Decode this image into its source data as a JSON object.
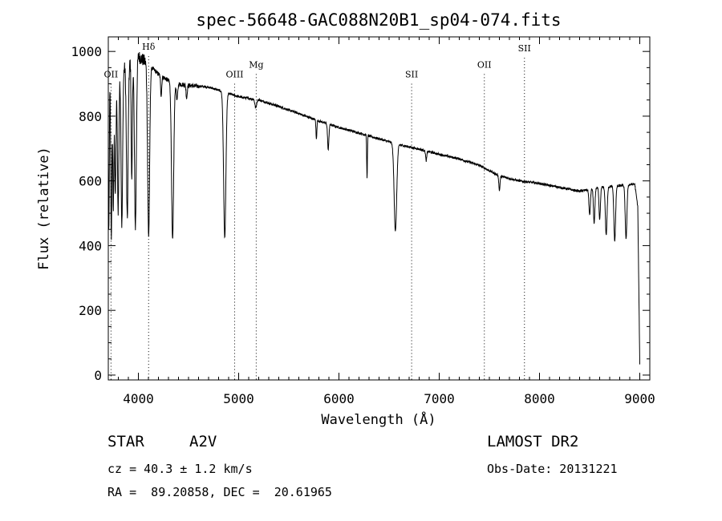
{
  "chart_data": {
    "type": "line",
    "title": "spec-56648-GAC088N20B1_sp04-074.fits",
    "xlabel": "Wavelength (Å)",
    "ylabel": "Flux (relative)",
    "xlim": [
      3700,
      9100
    ],
    "ylim": [
      -15,
      1045
    ],
    "x_ticks": [
      4000,
      5000,
      6000,
      7000,
      8000,
      9000
    ],
    "y_ticks": [
      0,
      200,
      400,
      600,
      800,
      1000
    ],
    "grid": false,
    "continuum": [
      [
        3700,
        900
      ],
      [
        3800,
        930
      ],
      [
        3900,
        965
      ],
      [
        4000,
        985
      ],
      [
        4100,
        960
      ],
      [
        4200,
        930
      ],
      [
        4300,
        910
      ],
      [
        4400,
        900
      ],
      [
        4500,
        895
      ],
      [
        4700,
        890
      ],
      [
        4900,
        870
      ],
      [
        5000,
        860
      ],
      [
        5200,
        850
      ],
      [
        5400,
        830
      ],
      [
        5600,
        808
      ],
      [
        5800,
        785
      ],
      [
        6000,
        765
      ],
      [
        6200,
        748
      ],
      [
        6400,
        730
      ],
      [
        6600,
        712
      ],
      [
        6800,
        698
      ],
      [
        7000,
        682
      ],
      [
        7200,
        668
      ],
      [
        7400,
        648
      ],
      [
        7600,
        615
      ],
      [
        7800,
        600
      ],
      [
        8000,
        592
      ],
      [
        8200,
        580
      ],
      [
        8400,
        568
      ],
      [
        8600,
        580
      ],
      [
        8800,
        585
      ],
      [
        8950,
        590
      ],
      [
        8980,
        520
      ],
      [
        9000,
        30
      ]
    ],
    "absorption_lines": [
      {
        "x": 3705,
        "depth": 470,
        "width": 6
      },
      {
        "x": 3730,
        "depth": 480,
        "width": 8
      },
      {
        "x": 3750,
        "depth": 400,
        "width": 8
      },
      {
        "x": 3770,
        "depth": 360,
        "width": 9
      },
      {
        "x": 3798,
        "depth": 420,
        "width": 10
      },
      {
        "x": 3835,
        "depth": 480,
        "width": 11
      },
      {
        "x": 3889,
        "depth": 480,
        "width": 12
      },
      {
        "x": 3934,
        "depth": 380,
        "width": 8
      },
      {
        "x": 3970,
        "depth": 520,
        "width": 13
      },
      {
        "x": 4102,
        "depth": 530,
        "width": 14
      },
      {
        "x": 4227,
        "depth": 60,
        "width": 8
      },
      {
        "x": 4341,
        "depth": 490,
        "width": 15
      },
      {
        "x": 4385,
        "depth": 50,
        "width": 10
      },
      {
        "x": 4481,
        "depth": 40,
        "width": 8
      },
      {
        "x": 4861,
        "depth": 450,
        "width": 16
      },
      {
        "x": 5170,
        "depth": 25,
        "width": 12
      },
      {
        "x": 5775,
        "depth": 60,
        "width": 6
      },
      {
        "x": 5893,
        "depth": 80,
        "width": 9
      },
      {
        "x": 6280,
        "depth": 130,
        "width": 5
      },
      {
        "x": 6563,
        "depth": 270,
        "width": 18
      },
      {
        "x": 6870,
        "depth": 30,
        "width": 8
      },
      {
        "x": 7600,
        "depth": 45,
        "width": 8
      },
      {
        "x": 8500,
        "depth": 80,
        "width": 10
      },
      {
        "x": 8545,
        "depth": 110,
        "width": 10
      },
      {
        "x": 8600,
        "depth": 100,
        "width": 10
      },
      {
        "x": 8665,
        "depth": 150,
        "width": 12
      },
      {
        "x": 8750,
        "depth": 170,
        "width": 12
      },
      {
        "x": 8863,
        "depth": 165,
        "width": 12
      }
    ],
    "reference_lines": [
      {
        "label": "OII",
        "x": 3727,
        "label_y": 920
      },
      {
        "label": "Hδ",
        "x": 4102,
        "label_y": 1005
      },
      {
        "label": "OIII",
        "x": 4960,
        "label_y": 920
      },
      {
        "label": "Mg",
        "x": 5175,
        "label_y": 950
      },
      {
        "label": "SII",
        "x": 6725,
        "label_y": 920
      },
      {
        "label": "OII",
        "x": 7450,
        "label_y": 950
      },
      {
        "label": "SII",
        "x": 7850,
        "label_y": 1000
      }
    ]
  },
  "info": {
    "object_class": "STAR",
    "subclass": "A2V",
    "survey": "LAMOST DR2",
    "velocity": "cz = 40.3 ± 1.2 km/s",
    "obs_date": "Obs-Date: 20131221",
    "coords": "RA =  89.20858, DEC =  20.61965"
  }
}
